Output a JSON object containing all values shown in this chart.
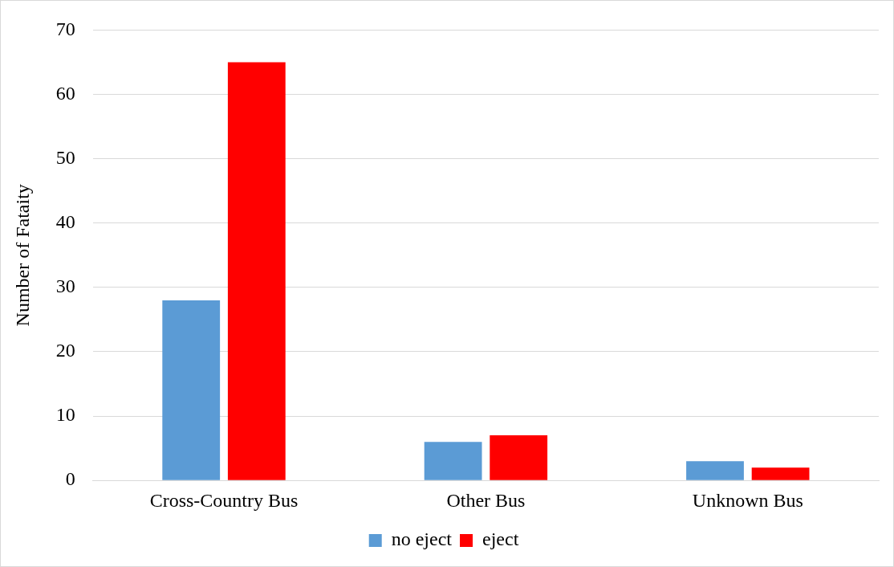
{
  "chart_data": {
    "type": "bar",
    "ylabel": "Number of Fataity",
    "categories": [
      "Cross-Country Bus",
      "Other Bus",
      "Unknown Bus"
    ],
    "series": [
      {
        "name": "no eject",
        "color": "#5b9bd5",
        "values": [
          28,
          6,
          3
        ]
      },
      {
        "name": "eject",
        "color": "#ff0000",
        "values": [
          65,
          7,
          2
        ]
      }
    ],
    "ylim": [
      0,
      70
    ],
    "yticks": [
      0,
      10,
      20,
      30,
      40,
      50,
      60,
      70
    ],
    "grid": "y",
    "legend": "bottom"
  }
}
